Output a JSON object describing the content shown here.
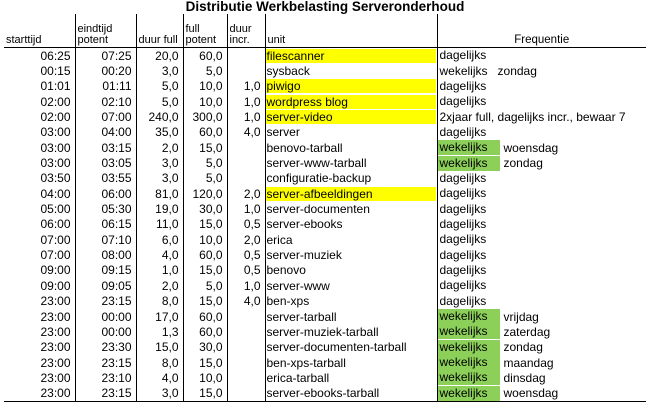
{
  "title": "Distributie Werkbelasting Serveronderhoud",
  "headers": {
    "starttijd": "starttijd",
    "eindtijd": "eindtijd potent",
    "duur_full": "duur full",
    "full_potent": "full potent",
    "duur_incr": "duur incr.",
    "unit": "unit",
    "frequentie": "Frequentie"
  },
  "colors": {
    "highlight_unit": "#ffff00",
    "highlight_freq": "#8cd05a"
  },
  "rows": [
    {
      "start": "06:25",
      "end": "07:25",
      "full": "20,0",
      "potent": "60,0",
      "incr": "",
      "unit": "filescanner",
      "unit_hl": true,
      "freq": "dagelijks",
      "freq_hl": false,
      "extra": ""
    },
    {
      "start": "00:15",
      "end": "00:20",
      "full": "3,0",
      "potent": "5,0",
      "incr": "",
      "unit": "sysback",
      "unit_hl": false,
      "freq": "wekelijks",
      "freq_hl": false,
      "extra": "zondag"
    },
    {
      "start": "01:01",
      "end": "01:11",
      "full": "5,0",
      "potent": "10,0",
      "incr": "1,0",
      "unit": "piwigo",
      "unit_hl": true,
      "freq": "dagelijks",
      "freq_hl": false,
      "extra": ""
    },
    {
      "start": "02:00",
      "end": "02:10",
      "full": "5,0",
      "potent": "10,0",
      "incr": "1,0",
      "unit": "wordpress blog",
      "unit_hl": true,
      "freq": "dagelijks",
      "freq_hl": false,
      "extra": ""
    },
    {
      "start": "02:00",
      "end": "07:00",
      "full": "240,0",
      "potent": "300,0",
      "incr": "1,0",
      "unit": "server-video",
      "unit_hl": true,
      "freq": "2xjaar full, dagelijks incr., bewaar 7",
      "freq_hl": false,
      "extra": ""
    },
    {
      "start": "03:00",
      "end": "04:00",
      "full": "35,0",
      "potent": "60,0",
      "incr": "4,0",
      "unit": "server",
      "unit_hl": false,
      "freq": "dagelijks",
      "freq_hl": false,
      "extra": ""
    },
    {
      "start": "03:00",
      "end": "03:15",
      "full": "2,0",
      "potent": "15,0",
      "incr": "",
      "unit": "benovo-tarball",
      "unit_hl": false,
      "freq": "wekelijks",
      "freq_hl": true,
      "extra": "woensdag"
    },
    {
      "start": "03:00",
      "end": "03:05",
      "full": "3,0",
      "potent": "5,0",
      "incr": "",
      "unit": "server-www-tarball",
      "unit_hl": false,
      "freq": "wekelijks",
      "freq_hl": true,
      "extra": "zondag"
    },
    {
      "start": "03:50",
      "end": "03:55",
      "full": "3,0",
      "potent": "5,0",
      "incr": "",
      "unit": "configuratie-backup",
      "unit_hl": false,
      "freq": "dagelijks",
      "freq_hl": false,
      "extra": ""
    },
    {
      "start": "04:00",
      "end": "06:00",
      "full": "81,0",
      "potent": "120,0",
      "incr": "2,0",
      "unit": "server-afbeeldingen",
      "unit_hl": true,
      "freq": "dagelijks",
      "freq_hl": false,
      "extra": ""
    },
    {
      "start": "05:00",
      "end": "05:30",
      "full": "19,0",
      "potent": "30,0",
      "incr": "1,0",
      "unit": "server-documenten",
      "unit_hl": false,
      "freq": "dagelijks",
      "freq_hl": false,
      "extra": ""
    },
    {
      "start": "06:00",
      "end": "06:15",
      "full": "11,0",
      "potent": "15,0",
      "incr": "0,5",
      "unit": "server-ebooks",
      "unit_hl": false,
      "freq": "dagelijks",
      "freq_hl": false,
      "extra": ""
    },
    {
      "start": "07:00",
      "end": "07:10",
      "full": "6,0",
      "potent": "10,0",
      "incr": "2,0",
      "unit": "erica",
      "unit_hl": false,
      "freq": "dagelijks",
      "freq_hl": false,
      "extra": ""
    },
    {
      "start": "07:00",
      "end": "08:00",
      "full": "4,0",
      "potent": "60,0",
      "incr": "0,5",
      "unit": "server-muziek",
      "unit_hl": false,
      "freq": "dagelijks",
      "freq_hl": false,
      "extra": ""
    },
    {
      "start": "09:00",
      "end": "09:15",
      "full": "1,0",
      "potent": "15,0",
      "incr": "0,5",
      "unit": "benovo",
      "unit_hl": false,
      "freq": "dagelijks",
      "freq_hl": false,
      "extra": ""
    },
    {
      "start": "09:00",
      "end": "09:05",
      "full": "2,0",
      "potent": "5,0",
      "incr": "1,0",
      "unit": "server-www",
      "unit_hl": false,
      "freq": "dagelijks",
      "freq_hl": false,
      "extra": ""
    },
    {
      "start": "23:00",
      "end": "23:15",
      "full": "8,0",
      "potent": "15,0",
      "incr": "4,0",
      "unit": "ben-xps",
      "unit_hl": false,
      "freq": "dagelijks",
      "freq_hl": false,
      "extra": ""
    },
    {
      "start": "23:00",
      "end": "00:00",
      "full": "17,0",
      "potent": "60,0",
      "incr": "",
      "unit": "server-tarball",
      "unit_hl": false,
      "freq": "wekelijks",
      "freq_hl": true,
      "extra": "vrijdag"
    },
    {
      "start": "23:00",
      "end": "00:00",
      "full": "1,3",
      "potent": "60,0",
      "incr": "",
      "unit": "server-muziek-tarball",
      "unit_hl": false,
      "freq": "wekelijks",
      "freq_hl": true,
      "extra": "zaterdag"
    },
    {
      "start": "23:00",
      "end": "23:30",
      "full": "15,0",
      "potent": "30,0",
      "incr": "",
      "unit": "server-documenten-tarball",
      "unit_hl": false,
      "freq": "wekelijks",
      "freq_hl": true,
      "extra": "zondag"
    },
    {
      "start": "23:00",
      "end": "23:15",
      "full": "8,0",
      "potent": "15,0",
      "incr": "",
      "unit": "ben-xps-tarball",
      "unit_hl": false,
      "freq": "wekelijks",
      "freq_hl": true,
      "extra": "maandag"
    },
    {
      "start": "23:00",
      "end": "23:10",
      "full": "4,0",
      "potent": "10,0",
      "incr": "",
      "unit": "erica-tarball",
      "unit_hl": false,
      "freq": "wekelijks",
      "freq_hl": true,
      "extra": "dinsdag"
    },
    {
      "start": "23:00",
      "end": "23:15",
      "full": "3,0",
      "potent": "15,0",
      "incr": "",
      "unit": "server-ebooks-tarball",
      "unit_hl": false,
      "freq": "wekelijks",
      "freq_hl": true,
      "extra": "woensdag"
    }
  ]
}
